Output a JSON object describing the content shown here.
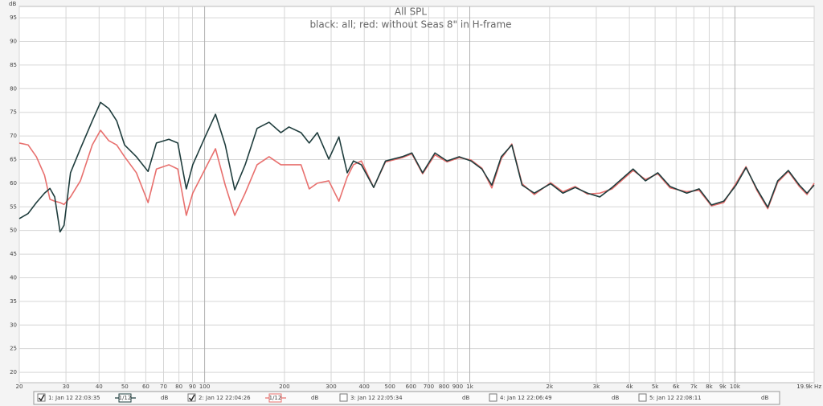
{
  "chart_data": {
    "type": "line",
    "title": "All SPL",
    "subtitle": "black: all; red: without Seas 8\" in H-frame",
    "y_label": "dB",
    "xscale": "log",
    "grid": true,
    "xlim": [
      20,
      19900
    ],
    "ylim": [
      17.8,
      97.4
    ],
    "yticks": [
      20,
      25,
      30,
      35,
      40,
      45,
      50,
      55,
      60,
      65,
      70,
      75,
      80,
      85,
      90,
      95
    ],
    "xticks": [
      20,
      30,
      40,
      50,
      60,
      70,
      80,
      90,
      100,
      200,
      300,
      400,
      500,
      600,
      700,
      800,
      900,
      {
        "value": 1000,
        "label": "1k"
      },
      {
        "value": 2000,
        "label": "2k"
      },
      {
        "value": 3000,
        "label": "3k"
      },
      {
        "value": 4000,
        "label": "4k"
      },
      {
        "value": 5000,
        "label": "5k"
      },
      {
        "value": 6000,
        "label": "6k"
      },
      {
        "value": 7000,
        "label": "7k"
      },
      {
        "value": 8000,
        "label": "8k"
      },
      {
        "value": 9000,
        "label": "9k"
      },
      {
        "value": 10000,
        "label": "10k"
      },
      {
        "value": 19900,
        "label": "19.9k Hz"
      }
    ],
    "x": [
      20,
      21.6,
      23.2,
      24.9,
      26.1,
      27.2,
      28.5,
      29.5,
      31.2,
      34,
      37.7,
      40.5,
      43.5,
      46.6,
      49.9,
      55.3,
      61.2,
      65.8,
      73.3,
      79.2,
      85.3,
      90.2,
      100.4,
      109.9,
      119.6,
      129.9,
      142.2,
      157.7,
      175,
      193.9,
      208,
      231,
      248,
      266,
      294,
      321,
      345,
      364,
      390,
      434,
      481,
      556,
      605,
      664,
      739,
      821,
      912,
      1012,
      1111,
      1211,
      1315,
      1441,
      1575,
      1752,
      2018,
      2245,
      2498,
      2780,
      3093,
      3442,
      4129,
      4598,
      5118,
      5695,
      6584,
      7330,
      8157,
      9076,
      10100,
      11010,
      12100,
      13300,
      14500,
      15900,
      17500,
      18700,
      19900
    ],
    "series": [
      {
        "name": "1: Jan 12 22:03:35",
        "color": "#1f3d3d",
        "smoothing": "1/12",
        "unit": "dB",
        "checked": true,
        "values": [
          52.5,
          53.6,
          55.9,
          57.9,
          58.9,
          57.1,
          49.7,
          51.1,
          62.2,
          67.3,
          73.2,
          77.1,
          75.8,
          73.2,
          68.1,
          65.6,
          62.5,
          68.5,
          69.3,
          68.5,
          58.8,
          63.9,
          69.8,
          74.6,
          68.1,
          58.6,
          63.9,
          71.6,
          72.9,
          70.7,
          71.9,
          70.7,
          68.5,
          70.7,
          65.1,
          69.8,
          62.2,
          64.7,
          63.9,
          59.1,
          64.7,
          65.6,
          66.4,
          62.2,
          66.4,
          64.7,
          65.6,
          64.7,
          63.0,
          59.6,
          65.6,
          68.1,
          59.6,
          57.9,
          59.9,
          57.9,
          59.1,
          57.9,
          57.1,
          59.1,
          63.0,
          60.5,
          62.2,
          59.3,
          57.9,
          58.8,
          55.4,
          56.2,
          59.6,
          63.3,
          58.8,
          54.9,
          60.5,
          62.7,
          59.6,
          57.9,
          59.6
        ]
      },
      {
        "name": "2: Jan 12 22:04:26",
        "color": "#e8706e",
        "smoothing": "1/12",
        "unit": "dB",
        "checked": true,
        "values": [
          68.5,
          68.1,
          65.6,
          61.7,
          56.6,
          56.2,
          55.9,
          55.5,
          57.1,
          60.5,
          68.1,
          71.2,
          69.0,
          68.1,
          65.6,
          62.2,
          55.9,
          63.0,
          63.9,
          63.0,
          53.2,
          57.9,
          63.0,
          67.3,
          59.6,
          53.2,
          57.9,
          63.9,
          65.6,
          63.9,
          63.9,
          63.9,
          58.8,
          60.0,
          60.5,
          56.2,
          61.3,
          63.9,
          64.7,
          59.1,
          64.5,
          65.4,
          66.2,
          62.0,
          66.0,
          64.5,
          65.4,
          64.9,
          63.2,
          59.0,
          65.2,
          68.3,
          59.9,
          57.6,
          60.1,
          58.2,
          59.3,
          57.7,
          57.9,
          58.8,
          62.7,
          60.8,
          62.0,
          59.0,
          58.2,
          58.5,
          55.2,
          55.9,
          60.0,
          63.5,
          58.5,
          54.6,
          60.2,
          62.5,
          59.3,
          57.6,
          60.0
        ]
      }
    ],
    "inactive_series": [
      {
        "name": "3: Jan 12 22:05:34",
        "color": "#9c9ad6",
        "unit": "dB",
        "checked": false
      },
      {
        "name": "4: Jan 12 22:06:49",
        "color": "#d6b400",
        "unit": "dB",
        "checked": false
      },
      {
        "name": "5: Jan 12 22:08:11",
        "color": "#c08a10",
        "unit": "dB",
        "checked": false
      }
    ]
  }
}
